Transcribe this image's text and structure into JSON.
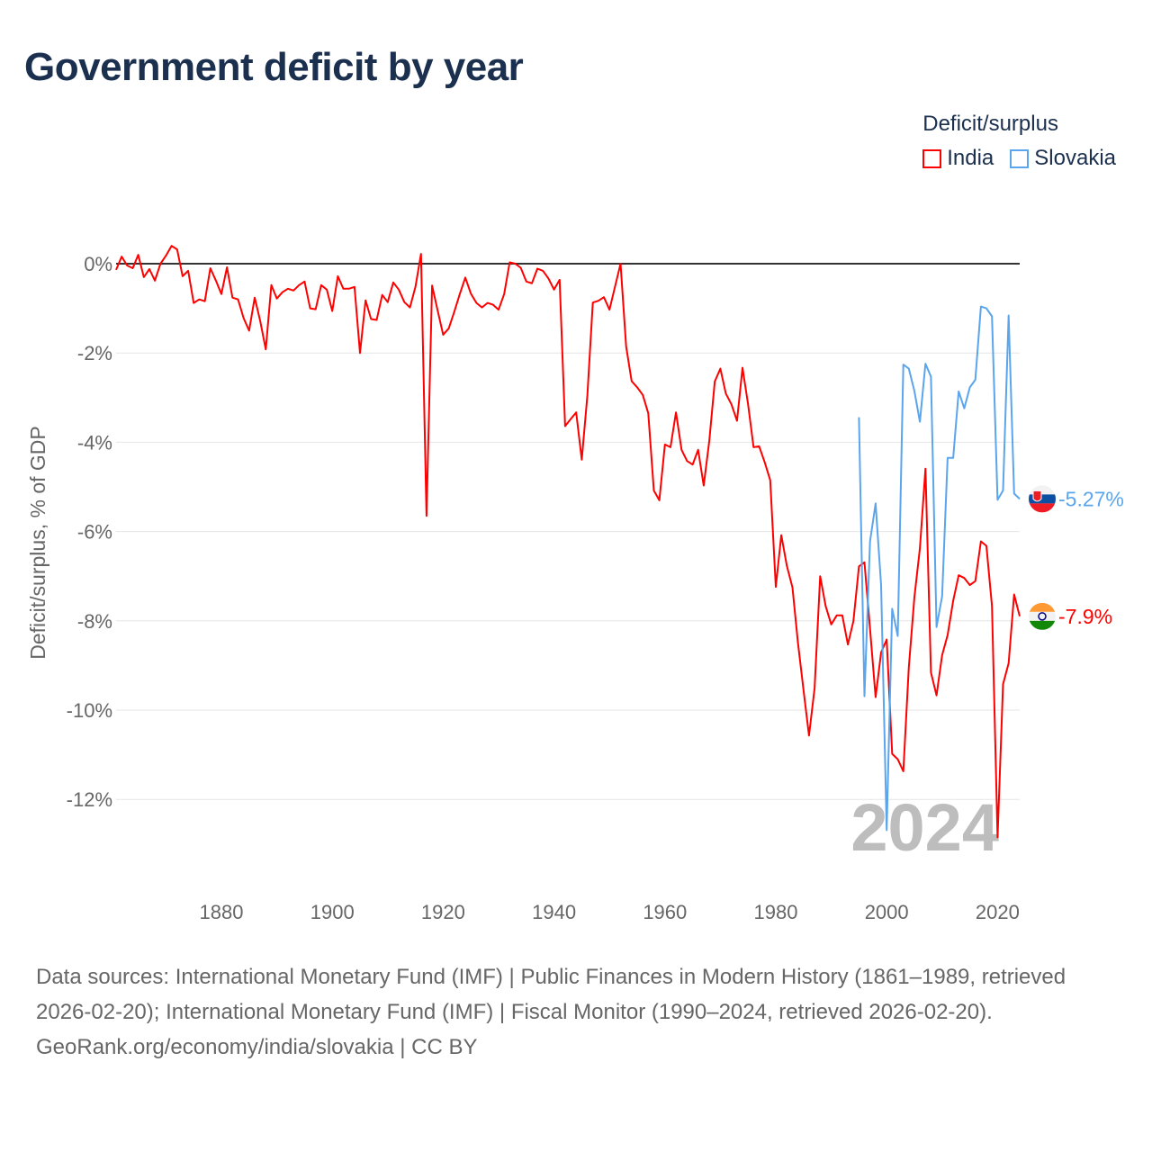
{
  "title": "Government deficit by year",
  "legend": {
    "title": "Deficit/surplus",
    "items": [
      {
        "name": "India",
        "color": "#ff0000"
      },
      {
        "name": "Slovakia",
        "color": "#5aa5ec"
      }
    ]
  },
  "year_watermark": "2024",
  "footer": {
    "sources": "Data sources: International Monetary Fund (IMF) | Public Finances in Modern History (1861–1989, retrieved 2026-02-20); International Monetary Fund (IMF) | Fiscal Monitor (1990–2024, retrieved 2026-02-20).",
    "credit": "GeoRank.org/economy/india/slovakia | CC BY"
  },
  "chart_data": {
    "type": "line",
    "title": "Government deficit by year",
    "xlabel": "",
    "ylabel": "Deficit/surplus, % of GDP",
    "xlim": [
      1861,
      2024
    ],
    "ylim": [
      -13.5,
      0.6
    ],
    "x_ticks": [
      1880,
      1900,
      1920,
      1940,
      1960,
      1980,
      2000,
      2020
    ],
    "x_tick_labels": [
      "1880",
      "1900",
      "1920",
      "1940",
      "1960",
      "1980",
      "2000",
      "2020"
    ],
    "y_ticks": [
      0,
      -2,
      -4,
      -6,
      -8,
      -10,
      -12
    ],
    "y_tick_labels": [
      "0%",
      "-2%",
      "-4%",
      "-6%",
      "-8%",
      "-10%",
      "-12%"
    ],
    "grid": true,
    "legend_position": "top-right",
    "series": [
      {
        "name": "India",
        "color": "#ff0000",
        "start_year": 1861,
        "end_label": "-7.9%",
        "values": [
          -0.14,
          0.16,
          -0.04,
          -0.1,
          0.2,
          -0.3,
          -0.12,
          -0.38,
          0,
          0.18,
          0.4,
          0.32,
          -0.28,
          -0.16,
          -0.88,
          -0.8,
          -0.84,
          -0.1,
          -0.38,
          -0.68,
          -0.08,
          -0.76,
          -0.8,
          -1.22,
          -1.5,
          -0.76,
          -1.28,
          -1.92,
          -0.48,
          -0.78,
          -0.64,
          -0.56,
          -0.6,
          -0.48,
          -0.4,
          -1.0,
          -1.02,
          -0.48,
          -0.58,
          -1.06,
          -0.28,
          -0.56,
          -0.56,
          -0.52,
          -2.0,
          -0.82,
          -1.24,
          -1.26,
          -0.7,
          -0.86,
          -0.42,
          -0.58,
          -0.86,
          -0.98,
          -0.52,
          0.22,
          -5.65,
          -0.49,
          -1.05,
          -1.59,
          -1.45,
          -1.08,
          -0.68,
          -0.31,
          -0.67,
          -0.88,
          -0.98,
          -0.88,
          -0.92,
          -1.03,
          -0.68,
          0.03,
          0,
          -0.09,
          -0.4,
          -0.44,
          -0.11,
          -0.16,
          -0.33,
          -0.58,
          -0.36,
          -3.64,
          -3.48,
          -3.33,
          -4.39,
          -2.96,
          -0.87,
          -0.83,
          -0.75,
          -1.03,
          -0.51,
          0,
          -1.85,
          -2.63,
          -2.77,
          -2.94,
          -3.35,
          -5.08,
          -5.3,
          -4.05,
          -4.11,
          -3.33,
          -4.17,
          -4.42,
          -4.5,
          -4.17,
          -4.97,
          -3.97,
          -2.64,
          -2.35,
          -2.91,
          -3.15,
          -3.52,
          -2.33,
          -3.15,
          -4.11,
          -4.09,
          -4.45,
          -4.85,
          -7.24,
          -6.08,
          -6.77,
          -7.25,
          -8.49,
          -9.55,
          -10.57,
          -9.51,
          -7.0,
          -7.67,
          -8.08,
          -7.88,
          -7.88,
          -8.53,
          -8.01,
          -6.78,
          -6.69,
          -8.18,
          -9.71,
          -8.71,
          -8.42,
          -10.98,
          -11.1,
          -11.37,
          -9.04,
          -7.47,
          -6.38,
          -4.59,
          -9.16,
          -9.67,
          -8.77,
          -8.32,
          -7.55,
          -6.98,
          -7.04,
          -7.2,
          -7.11,
          -6.22,
          -6.32,
          -7.67,
          -12.85,
          -9.42,
          -8.95,
          -7.41,
          -7.9
        ]
      },
      {
        "name": "Slovakia",
        "color": "#5aa5ec",
        "start_year": 1995,
        "end_label": "-5.27%",
        "values": [
          -3.44,
          -9.69,
          -6.22,
          -5.37,
          -7.2,
          -12.69,
          -7.73,
          -8.34,
          -2.26,
          -2.35,
          -2.85,
          -3.54,
          -2.24,
          -2.53,
          -8.14,
          -7.45,
          -4.35,
          -4.35,
          -2.86,
          -3.24,
          -2.77,
          -2.6,
          -0.96,
          -1.0,
          -1.18,
          -5.29,
          -5.08,
          -1.16,
          -5.15,
          -5.27
        ]
      }
    ]
  }
}
